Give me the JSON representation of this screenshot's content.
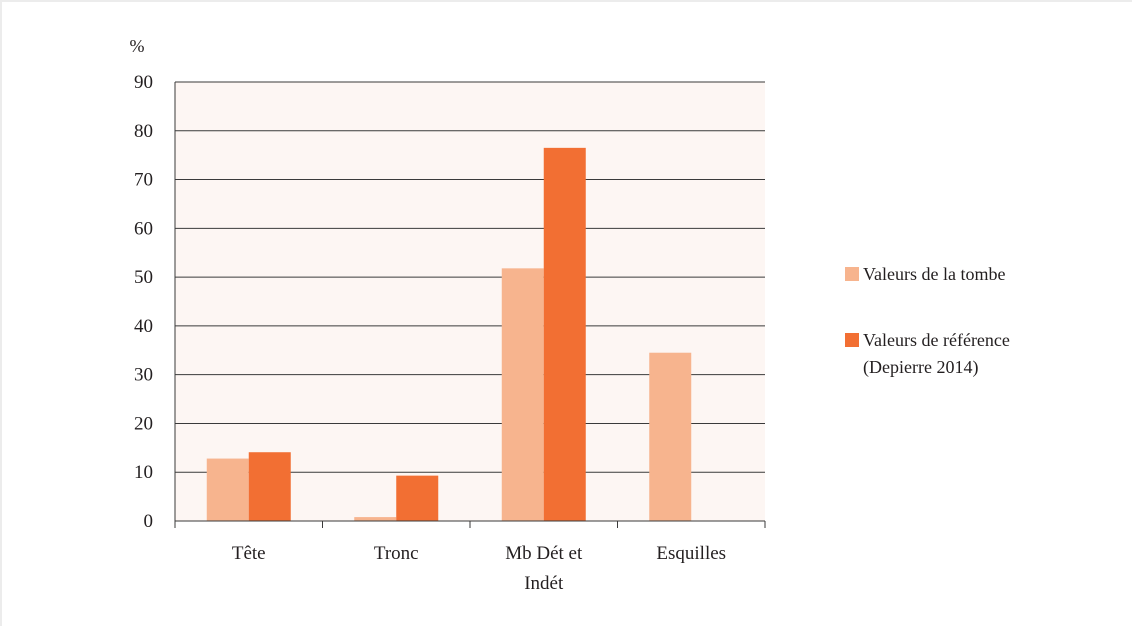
{
  "chart_data": {
    "type": "bar",
    "ylabel": "%",
    "ylim": [
      0,
      90
    ],
    "yticks": [
      0,
      10,
      20,
      30,
      40,
      50,
      60,
      70,
      80,
      90
    ],
    "categories": [
      [
        "Tête"
      ],
      [
        "Tronc"
      ],
      [
        "Mb Dét et",
        "Indét"
      ],
      [
        "Esquilles"
      ]
    ],
    "series": [
      {
        "name": "Valeurs de la tombe",
        "values": [
          12.8,
          0.8,
          51.8,
          34.5
        ],
        "color": "#f7b48e"
      },
      {
        "name": "Valeurs de référence (Depierre 2014)",
        "legend_lines": [
          "Valeurs de référence",
          "(Depierre 2014)"
        ],
        "values": [
          14.1,
          9.3,
          76.5,
          0
        ],
        "color": "#f26f33"
      }
    ],
    "grid": true,
    "plot_background": "#fdf6f3",
    "legend_position": "right"
  }
}
